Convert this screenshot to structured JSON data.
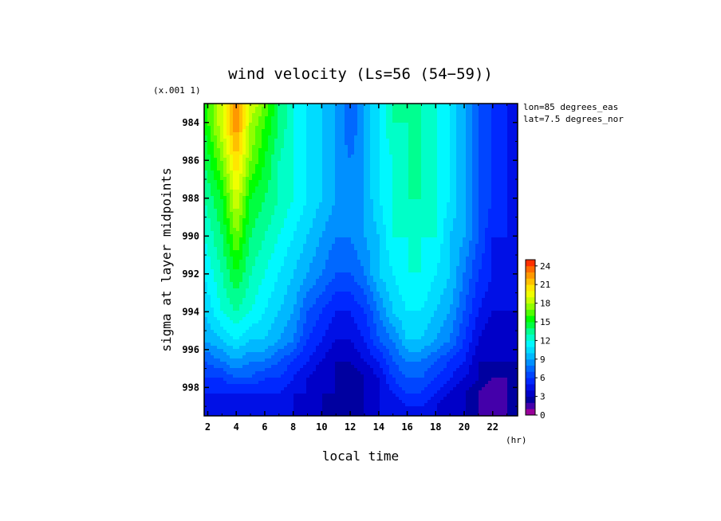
{
  "chart_data": {
    "type": "heatmap",
    "title": "wind velocity (Ls=56 (54−59))",
    "xlabel": "local time",
    "x_unit": "(hr)",
    "ylabel": "sigma at layer midpoints",
    "y_scale_note": "(x.001 1)",
    "annotations": [
      "lon=85 degrees_eas",
      "lat=7.5 degrees_nor"
    ],
    "x_ticks": [
      "2",
      "4",
      "6",
      "8",
      "10",
      "12",
      "14",
      "16",
      "18",
      "20",
      "22"
    ],
    "y_ticks": [
      "984",
      "986",
      "988",
      "990",
      "992",
      "994",
      "996",
      "998"
    ],
    "xlim": [
      1.75,
      23.75
    ],
    "ylim": [
      999.5,
      983.0
    ],
    "x": [
      1.75,
      3,
      4,
      5,
      6,
      7,
      8,
      9,
      10,
      11,
      12,
      13,
      14,
      15,
      16,
      17,
      18,
      19,
      20,
      21,
      22,
      23,
      23.75
    ],
    "y": [
      983.0,
      984.0,
      986.0,
      988.0,
      990.0,
      992.0,
      994.0,
      995.5,
      996.6,
      997.5,
      998.3,
      999.0,
      999.5
    ],
    "z": [
      [
        15,
        19,
        23,
        19,
        17,
        14,
        12,
        11,
        10,
        9,
        7,
        9,
        11,
        13,
        13,
        13,
        12,
        11,
        9,
        7,
        6,
        5,
        4
      ],
      [
        15,
        19,
        23,
        18,
        16,
        14,
        12,
        11,
        10,
        9,
        7,
        9,
        11,
        13,
        13,
        13,
        12,
        11,
        9,
        7,
        6,
        5,
        4
      ],
      [
        14,
        17,
        21,
        17,
        15,
        13,
        12,
        11,
        10,
        9,
        8,
        9,
        11,
        12,
        13,
        13,
        12,
        11,
        9,
        7,
        6,
        5,
        4
      ],
      [
        13,
        15,
        19,
        15,
        14,
        13,
        12,
        11,
        10,
        9,
        8,
        9,
        11,
        12,
        13,
        13,
        12,
        11,
        9,
        7,
        6,
        5,
        4
      ],
      [
        12,
        14,
        17,
        14,
        13,
        12,
        11,
        10,
        9,
        8,
        8,
        9,
        10,
        12,
        12,
        12,
        12,
        10,
        9,
        7,
        5,
        5,
        4
      ],
      [
        11,
        13,
        15,
        13,
        12,
        11,
        10,
        9,
        8,
        7,
        7,
        8,
        10,
        11,
        12,
        12,
        11,
        10,
        8,
        6,
        5,
        4,
        4
      ],
      [
        10,
        12,
        13,
        12,
        11,
        10,
        9,
        7,
        6,
        5,
        5,
        6,
        8,
        10,
        11,
        11,
        10,
        9,
        7,
        5,
        4,
        4,
        4
      ],
      [
        9,
        10,
        11,
        10,
        10,
        9,
        8,
        6,
        5,
        4,
        4,
        5,
        7,
        8,
        10,
        10,
        9,
        8,
        6,
        4,
        3,
        3,
        4
      ],
      [
        7,
        8,
        9,
        8,
        8,
        7,
        6,
        5,
        4,
        3,
        3,
        4,
        5,
        7,
        8,
        8,
        7,
        6,
        5,
        3,
        3,
        3,
        3
      ],
      [
        6,
        6,
        7,
        7,
        6,
        6,
        5,
        4,
        3,
        3,
        2,
        3,
        4,
        6,
        7,
        7,
        6,
        5,
        4,
        3,
        2,
        2,
        3
      ],
      [
        5,
        5,
        5,
        5,
        5,
        5,
        4,
        4,
        3,
        3,
        2,
        3,
        4,
        5,
        6,
        6,
        5,
        4,
        3,
        2,
        1,
        2,
        3
      ],
      [
        4,
        4,
        4,
        4,
        4,
        4,
        4,
        3,
        3,
        2,
        2,
        3,
        4,
        4,
        5,
        5,
        4,
        3,
        3,
        2,
        1,
        2,
        2
      ],
      [
        4,
        4,
        4,
        4,
        4,
        4,
        4,
        3,
        3,
        2,
        2,
        3,
        4,
        4,
        4,
        4,
        4,
        3,
        3,
        2,
        1,
        2,
        2
      ]
    ],
    "colorbar": {
      "labels": [
        "24",
        "21",
        "18",
        "15",
        "12",
        "9",
        "6",
        "3",
        "0"
      ],
      "min": 0,
      "max": 25,
      "levels": 25,
      "colors": [
        "#990099",
        "#4400aa",
        "#0000a0",
        "#0000c8",
        "#0010e6",
        "#0028ff",
        "#0045ff",
        "#0068ff",
        "#0090ff",
        "#00b8ff",
        "#00dcff",
        "#00f8ff",
        "#00ffc8",
        "#00ff90",
        "#00ff40",
        "#00ff00",
        "#50ff00",
        "#90ff00",
        "#c8ff00",
        "#f0ff00",
        "#ffe600",
        "#ffc000",
        "#ff9800",
        "#ff6a00",
        "#ff3000"
      ]
    }
  }
}
